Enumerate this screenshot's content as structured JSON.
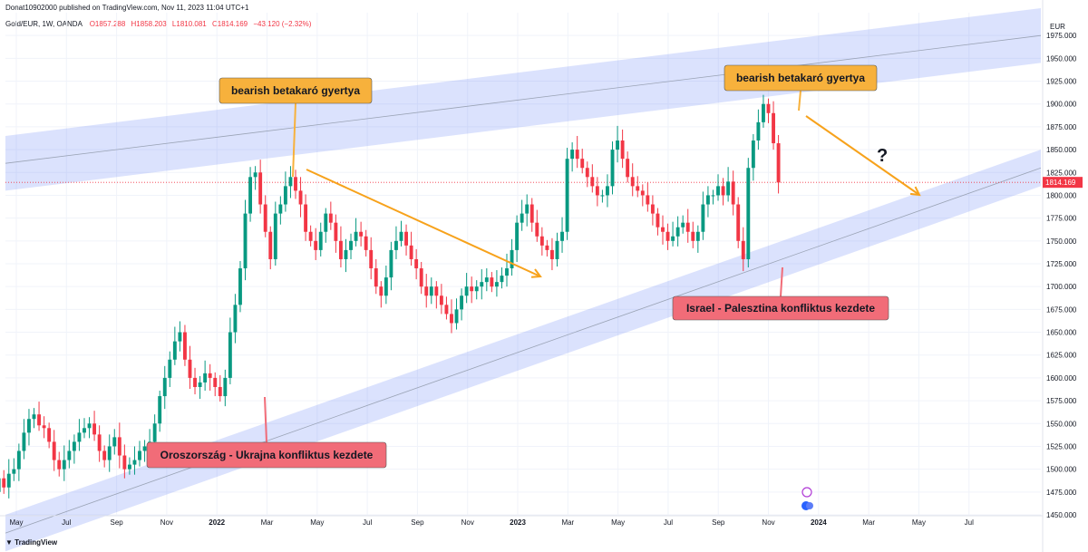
{
  "header": {
    "published": "Donat10902000 published on TradingView.com, Nov 11, 2023 11:04 UTC+1",
    "symbol": "Gold/EUR, 1W, OANDA",
    "open": "O1857.288",
    "high": "H1858.203",
    "low": "L1810.081",
    "close": "C1814.169",
    "change": "−43.120 (−2.32%)"
  },
  "footer": {
    "brand": "TradingView"
  },
  "colors": {
    "up": "#089981",
    "down": "#f23645",
    "channel": "#5b7cf7",
    "arrow": "#f7a21b",
    "orange_label": "#f7b13c",
    "red_label": "#f16c78"
  },
  "icons": [
    "lightning-icon",
    "toggle-icon",
    "tradingview-logo-icon"
  ],
  "chart_data": {
    "type": "candlestick",
    "currency": "EUR",
    "last_price": "1814.169",
    "ylim": [
      1450,
      2000
    ],
    "y_ticks": [
      "1975.000",
      "1950.000",
      "1925.000",
      "1900.000",
      "1875.000",
      "1850.000",
      "1825.000",
      "1800.000",
      "1775.000",
      "1750.000",
      "1725.000",
      "1700.000",
      "1675.000",
      "1650.000",
      "1625.000",
      "1600.000",
      "1575.000",
      "1550.000",
      "1525.000",
      "1500.000",
      "1475.000",
      "1450.000"
    ],
    "x_ticks": [
      "May",
      "Jul",
      "Sep",
      "Nov",
      "2022",
      "Mar",
      "May",
      "Jul",
      "Sep",
      "Nov",
      "2023",
      "Mar",
      "May",
      "Jul",
      "Sep",
      "Nov",
      "2024",
      "Mar",
      "May",
      "Jul"
    ],
    "weekly_close": [
      1475,
      1490,
      1480,
      1495,
      1500,
      1520,
      1540,
      1555,
      1560,
      1548,
      1545,
      1530,
      1510,
      1500,
      1510,
      1520,
      1530,
      1540,
      1545,
      1550,
      1538,
      1520,
      1510,
      1525,
      1535,
      1515,
      1500,
      1505,
      1510,
      1520,
      1525,
      1530,
      1550,
      1580,
      1600,
      1620,
      1640,
      1650,
      1620,
      1600,
      1590,
      1595,
      1605,
      1600,
      1590,
      1580,
      1600,
      1650,
      1680,
      1720,
      1780,
      1820,
      1825,
      1790,
      1760,
      1730,
      1780,
      1790,
      1810,
      1820,
      1805,
      1790,
      1760,
      1750,
      1740,
      1760,
      1780,
      1770,
      1750,
      1730,
      1740,
      1750,
      1760,
      1755,
      1740,
      1720,
      1700,
      1690,
      1710,
      1740,
      1750,
      1760,
      1745,
      1730,
      1720,
      1700,
      1690,
      1700,
      1690,
      1680,
      1670,
      1660,
      1675,
      1690,
      1700,
      1695,
      1700,
      1705,
      1710,
      1700,
      1705,
      1712,
      1720,
      1740,
      1770,
      1780,
      1790,
      1770,
      1755,
      1745,
      1740,
      1730,
      1750,
      1760,
      1840,
      1850,
      1840,
      1830,
      1820,
      1810,
      1800,
      1800,
      1810,
      1850,
      1860,
      1840,
      1820,
      1810,
      1805,
      1800,
      1790,
      1780,
      1765,
      1760,
      1750,
      1755,
      1765,
      1770,
      1760,
      1750,
      1760,
      1790,
      1800,
      1800,
      1810,
      1800,
      1815,
      1790,
      1750,
      1730,
      1830,
      1860,
      1880,
      1900,
      1890,
      1857,
      1814
    ],
    "channel_upper": {
      "from": [
        "2021-04",
        "1865"
      ],
      "to": [
        "2024-08",
        "2005"
      ],
      "width": 60
    },
    "channel_lower": {
      "from": [
        "2021-04",
        "1450"
      ],
      "to": [
        "2024-08",
        "1850"
      ],
      "width": 40
    },
    "annotations": [
      {
        "text": "bearish betakaró gyertya",
        "style": "orange"
      },
      {
        "text": "bearish betakaró gyertya",
        "style": "orange"
      },
      {
        "text": "Oroszország - Ukrajna konfliktus kezdete",
        "style": "red"
      },
      {
        "text": "Israel - Palesztina konfliktus kezdete",
        "style": "red"
      },
      {
        "text": "?",
        "style": "plain"
      }
    ]
  }
}
